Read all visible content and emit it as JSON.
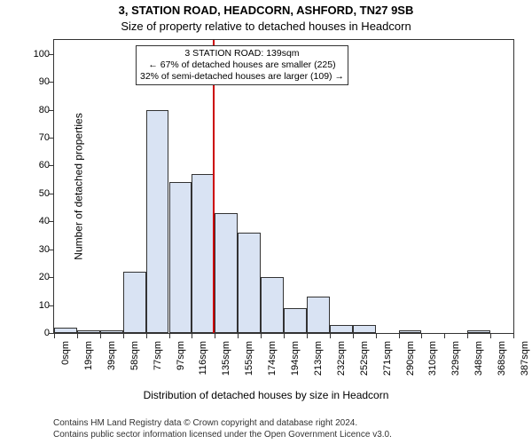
{
  "titles": {
    "address": "3, STATION ROAD, HEADCORN, ASHFORD, TN27 9SB",
    "subtitle": "Size of property relative to detached houses in Headcorn"
  },
  "axes": {
    "ylabel": "Number of detached properties",
    "xlabel": "Distribution of detached houses by size in Headcorn",
    "ylim": [
      0,
      105
    ],
    "ytick_step": 10,
    "yticks": [
      0,
      10,
      20,
      30,
      40,
      50,
      60,
      70,
      80,
      90,
      100
    ],
    "xticks": [
      "0sqm",
      "19sqm",
      "39sqm",
      "58sqm",
      "77sqm",
      "97sqm",
      "116sqm",
      "135sqm",
      "155sqm",
      "174sqm",
      "194sqm",
      "213sqm",
      "232sqm",
      "252sqm",
      "271sqm",
      "290sqm",
      "310sqm",
      "329sqm",
      "348sqm",
      "368sqm",
      "387sqm"
    ]
  },
  "chart": {
    "type": "histogram",
    "bar_color": "#d9e3f3",
    "bar_border_color": "#333333",
    "background_color": "#ffffff",
    "plot_border_color": "#333333",
    "reference_line_color": "#cc0000",
    "reference_value_sqm": 139,
    "x_range_sqm": [
      0,
      400
    ],
    "values": [
      2,
      1,
      1,
      22,
      80,
      54,
      57,
      43,
      36,
      20,
      9,
      13,
      3,
      3,
      0,
      1,
      0,
      0,
      1,
      0
    ],
    "label_fontsize": 12,
    "tick_fontsize": 11,
    "title_fontsize": 13
  },
  "callout": {
    "line1": "3 STATION ROAD: 139sqm",
    "line2": "← 67% of detached houses are smaller (225)",
    "line3": "32% of semi-detached houses are larger (109) →"
  },
  "footer": {
    "line1": "Contains HM Land Registry data © Crown copyright and database right 2024.",
    "line2": "Contains public sector information licensed under the Open Government Licence v3.0."
  }
}
